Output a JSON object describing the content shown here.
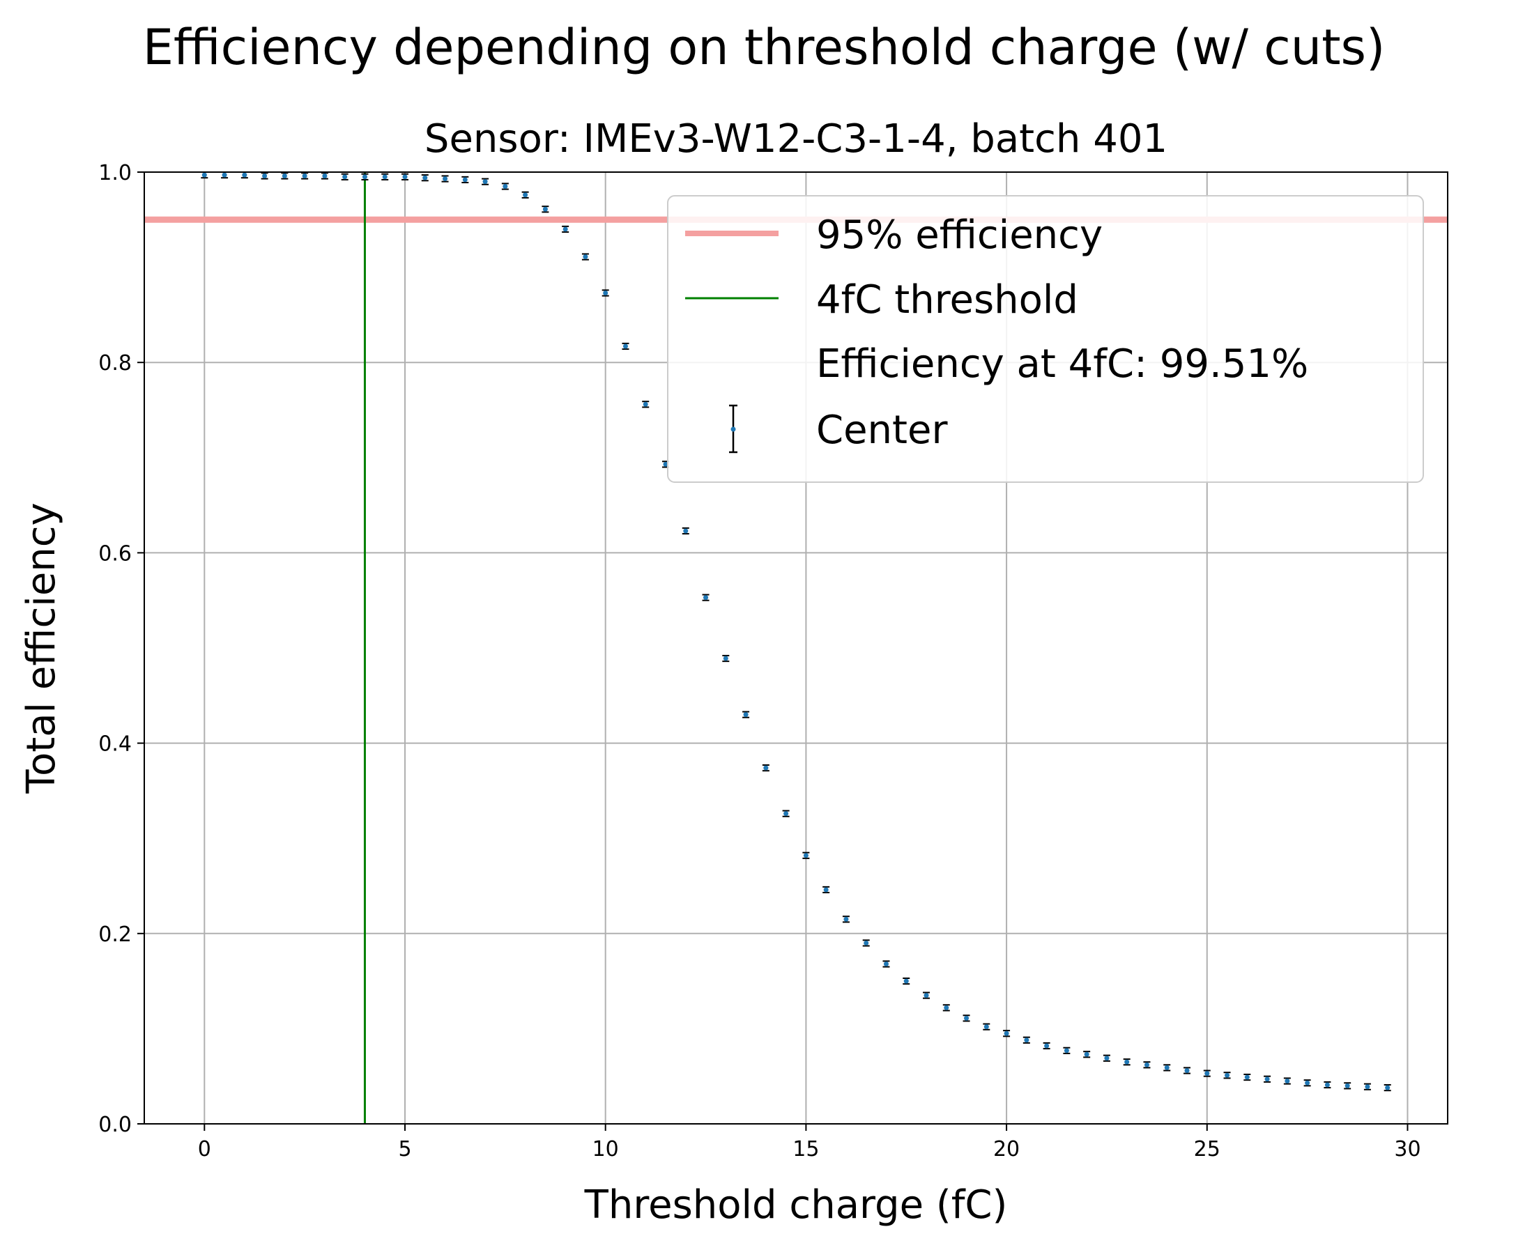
{
  "chart_data": {
    "type": "scatter",
    "title": "Efficiency depending on threshold charge (w/ cuts)",
    "subtitle": "Sensor: IMEv3-W12-C3-1-4, batch 401",
    "xlabel": "Threshold charge (fC)",
    "ylabel": "Total efficiency",
    "xlim": [
      -1.5,
      31
    ],
    "ylim": [
      0.0,
      1.0
    ],
    "xticks": [
      0,
      5,
      10,
      15,
      20,
      25,
      30
    ],
    "xtick_labels": [
      "0",
      "5",
      "10",
      "15",
      "20",
      "25",
      "30"
    ],
    "yticks": [
      0.0,
      0.2,
      0.4,
      0.6,
      0.8,
      1.0
    ],
    "ytick_labels": [
      "0.0",
      "0.2",
      "0.4",
      "0.6",
      "0.8",
      "1.0"
    ],
    "grid": true,
    "legend_position": "upper-right",
    "reference_lines": [
      {
        "orientation": "horizontal",
        "value": 0.95,
        "name": "95% efficiency",
        "color": "#f4a0a0"
      },
      {
        "orientation": "vertical",
        "value": 4,
        "name": "4fC threshold",
        "color": "#008000"
      }
    ],
    "legend": [
      {
        "kind": "hline",
        "label": "95% efficiency",
        "color": "#f4a0a0"
      },
      {
        "kind": "vline",
        "label": "4fC threshold",
        "color": "#008000"
      },
      {
        "kind": "text",
        "label": "Efficiency at 4fC: 99.51%"
      },
      {
        "kind": "errorbar",
        "label": "Center",
        "color": "#1f77b4"
      }
    ],
    "series": [
      {
        "name": "Center",
        "color": "#1f77b4",
        "errorbar_color": "#000000",
        "x": [
          0,
          0.5,
          1,
          1.5,
          2,
          2.5,
          3,
          3.5,
          4,
          4.5,
          5,
          5.5,
          6,
          6.5,
          7,
          7.5,
          8,
          8.5,
          9,
          9.5,
          10,
          10.5,
          11,
          11.5,
          12,
          12.5,
          13,
          13.5,
          14,
          14.5,
          15,
          15.5,
          16,
          16.5,
          17,
          17.5,
          18,
          18.5,
          19,
          19.5,
          20,
          20.5,
          21,
          21.5,
          22,
          22.5,
          23,
          23.5,
          24,
          24.5,
          25,
          25.5,
          26,
          26.5,
          27,
          27.5,
          28,
          28.5,
          29,
          29.5
        ],
        "y": [
          0.997,
          0.997,
          0.997,
          0.996,
          0.996,
          0.996,
          0.996,
          0.995,
          0.995,
          0.995,
          0.995,
          0.994,
          0.993,
          0.992,
          0.99,
          0.985,
          0.976,
          0.961,
          0.94,
          0.911,
          0.873,
          0.817,
          0.756,
          0.693,
          0.623,
          0.553,
          0.489,
          0.43,
          0.374,
          0.326,
          0.282,
          0.246,
          0.215,
          0.19,
          0.168,
          0.15,
          0.135,
          0.122,
          0.111,
          0.102,
          0.095,
          0.088,
          0.082,
          0.077,
          0.073,
          0.069,
          0.065,
          0.062,
          0.059,
          0.056,
          0.053,
          0.051,
          0.049,
          0.047,
          0.045,
          0.043,
          0.041,
          0.04,
          0.039,
          0.038
        ],
        "yerr": 0.003
      }
    ]
  }
}
